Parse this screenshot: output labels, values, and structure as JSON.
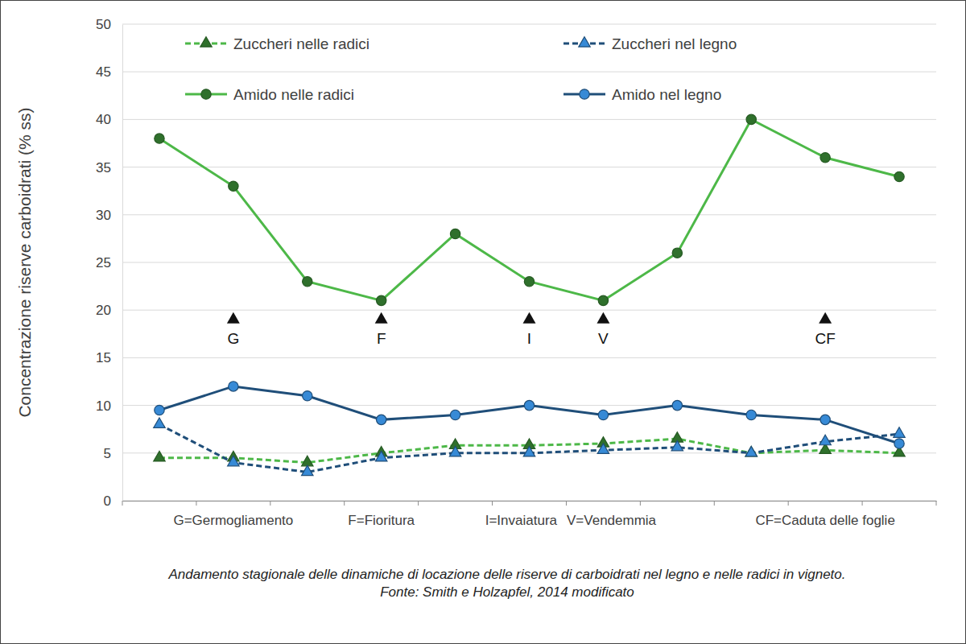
{
  "chart_data": {
    "type": "line",
    "y_label": "Concentrazione riserve carboidrati (% ss)",
    "categories": [
      null,
      "G=Germogliamento",
      null,
      "F=Fioritura",
      null,
      "I=Invaiatura",
      "V=Vendemmia",
      null,
      null,
      "CF=Caduta delle foglie",
      null
    ],
    "series": [
      {
        "name": "Zuccheri nelle radici",
        "color": "#4db848",
        "marker": "triangle",
        "line_style": "dashed",
        "values": [
          4.5,
          4.5,
          4,
          5,
          5.8,
          5.8,
          6,
          6.5,
          5,
          5.3,
          5
        ]
      },
      {
        "name": "Zuccheri nel legno",
        "color": "#1f4e79",
        "marker": "triangle",
        "line_style": "dashed",
        "values": [
          8,
          4,
          3,
          4.5,
          5,
          5,
          5.3,
          5.6,
          5,
          6.2,
          7
        ]
      },
      {
        "name": "Amido nelle radici",
        "color": "#4db848",
        "marker": "circle",
        "line_style": "solid",
        "values": [
          38,
          33,
          23,
          21,
          28,
          23,
          21,
          26,
          40,
          36,
          34
        ]
      },
      {
        "name": "Amido nel legno",
        "color": "#1f4e79",
        "marker": "circle",
        "line_style": "solid",
        "values": [
          9.5,
          12,
          11,
          8.5,
          9,
          10,
          9,
          10,
          9,
          8.5,
          6
        ]
      }
    ],
    "annotations": [
      {
        "text": "G",
        "x": 1,
        "y": 19
      },
      {
        "text": "F",
        "x": 3,
        "y": 19
      },
      {
        "text": "I",
        "x": 5,
        "y": 19
      },
      {
        "text": "V",
        "x": 6,
        "y": 19
      },
      {
        "text": "CF",
        "x": 9,
        "y": 19
      }
    ],
    "ylim": [
      0,
      50
    ],
    "yticks": [
      0,
      5,
      10,
      15,
      20,
      25,
      30,
      35,
      40,
      45,
      50
    ],
    "grid": true,
    "legend": "top",
    "caption": "Andamento stagionale delle dinamiche di locazione delle riserve di carboidrati nel legno e nelle radici in vigneto.",
    "source": "Fonte: Smith e Holzapfel, 2014 modificato"
  }
}
